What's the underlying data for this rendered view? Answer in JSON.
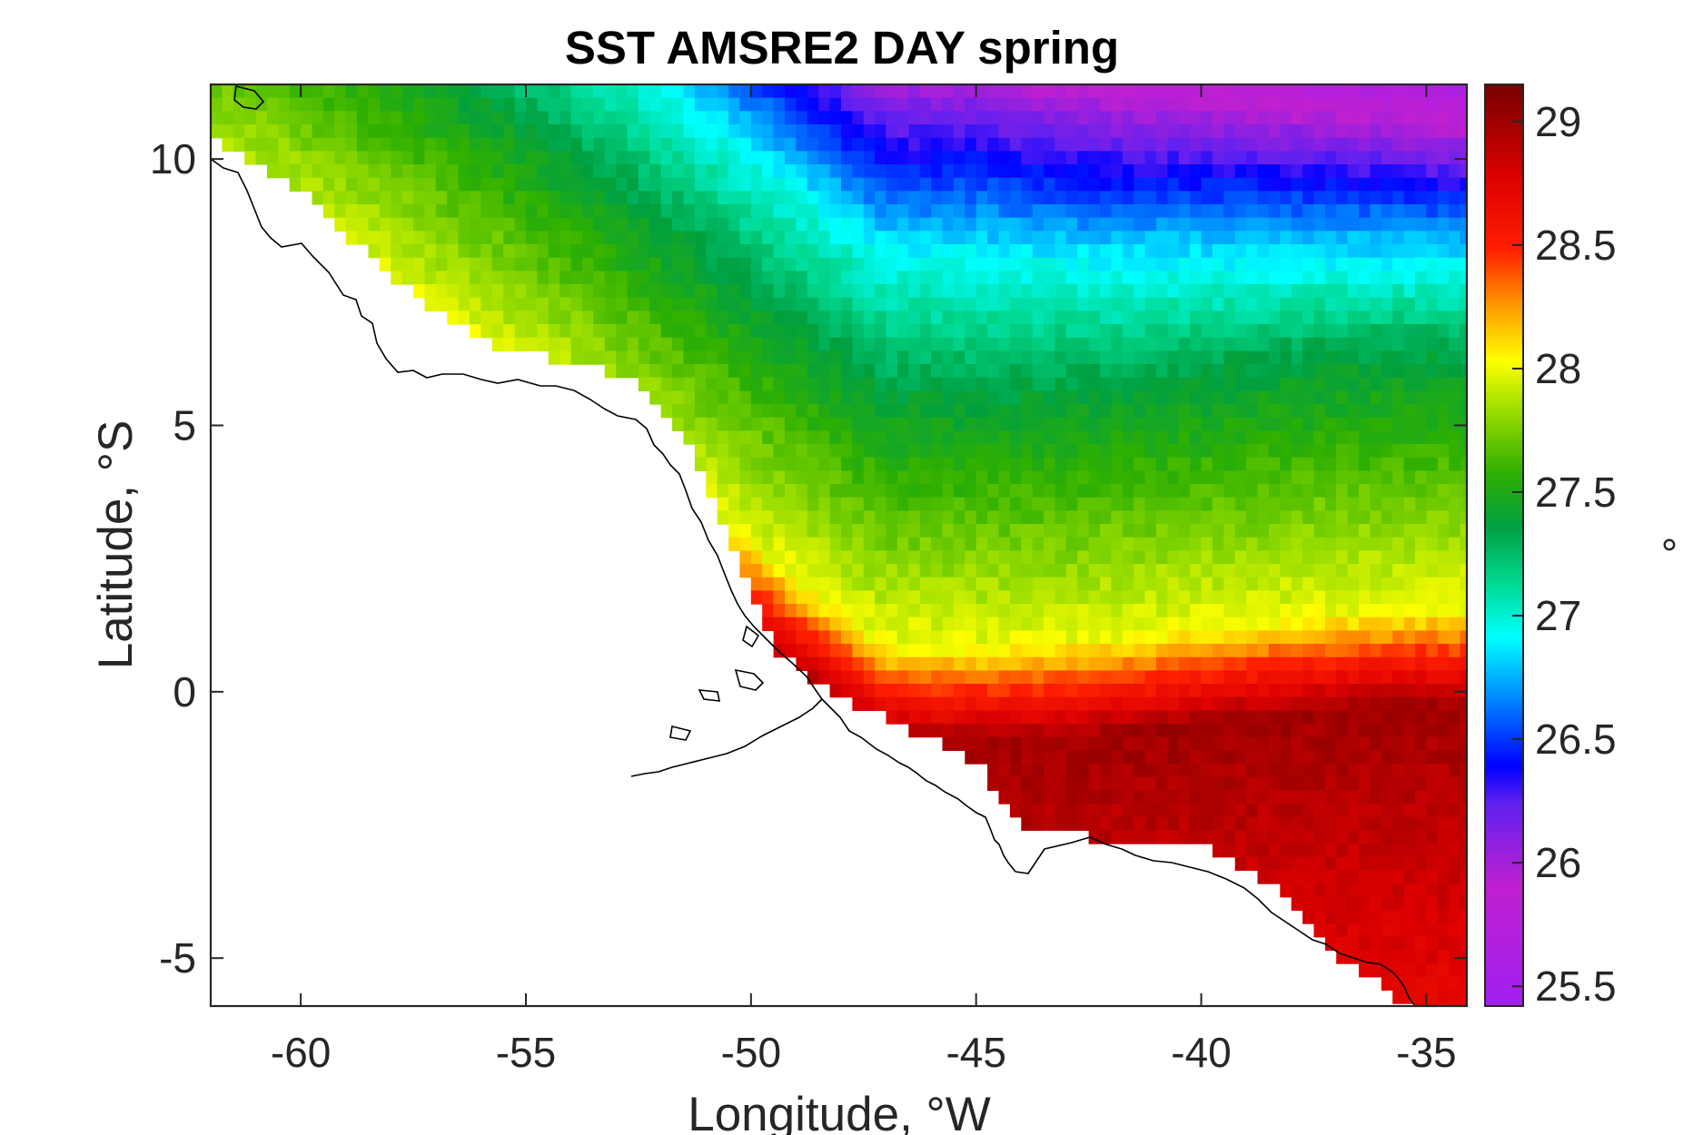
{
  "chart_data": {
    "type": "heatmap",
    "title": "SST AMSRE2 DAY spring",
    "xlabel": "Longitude, °W",
    "ylabel": "Latitude, °S",
    "xlim": [
      -62,
      -34.1
    ],
    "ylim": [
      -5.9,
      11.4
    ],
    "xticks": [
      -60,
      -55,
      -50,
      -45,
      -40,
      -35
    ],
    "yticks": [
      -5,
      0,
      5,
      10
    ],
    "colorbar": {
      "label": "°",
      "clim": [
        25.42,
        29.15
      ],
      "ticks": [
        25.5,
        26,
        26.5,
        27,
        27.5,
        28,
        28.5,
        29
      ],
      "colormap": [
        [
          0.0,
          "#a020f0"
        ],
        [
          0.13,
          "#c020d0"
        ],
        [
          0.22,
          "#6020f0"
        ],
        [
          0.26,
          "#0000ff"
        ],
        [
          0.33,
          "#0080ff"
        ],
        [
          0.4,
          "#00ffff"
        ],
        [
          0.46,
          "#00d890"
        ],
        [
          0.52,
          "#00a040"
        ],
        [
          0.58,
          "#30b000"
        ],
        [
          0.65,
          "#a0e000"
        ],
        [
          0.7,
          "#ffff00"
        ],
        [
          0.76,
          "#ff9900"
        ],
        [
          0.82,
          "#ff2000"
        ],
        [
          0.9,
          "#dd0000"
        ],
        [
          1.0,
          "#770000"
        ]
      ]
    },
    "field_description": "Sea surface temperature field: ~29 C (dark red) along the northern Brazil coast south of the equator, yellow front near 1-2N, green plume ~27.5 C off the Amazon shelf around 5-6N, cyan 27 C band near 8-9N, blue to purple 25.5-26.5 C in the northeast corner"
  }
}
